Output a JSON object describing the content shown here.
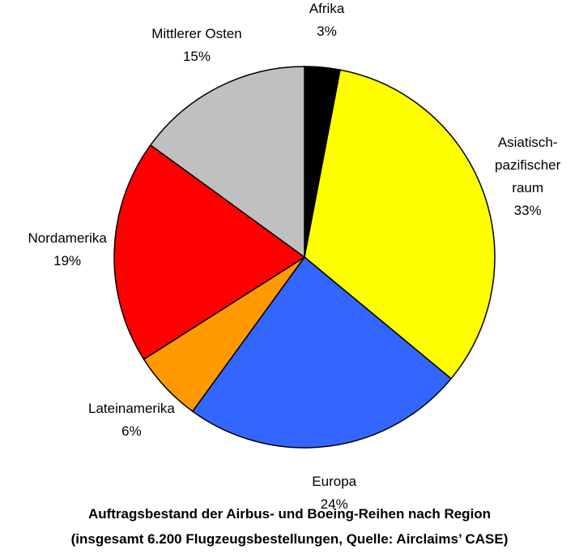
{
  "chart_data": {
    "type": "pie",
    "title": "Auftragsbestand der Airbus- und Boeing-Reihen nach Region",
    "subtitle": "(insgesamt 6.200 Flugzeugsbestellungen, Quelle: Airclaims’ CASE)",
    "categories": [
      "Afrika",
      "Asiatisch-\npazifischer\nraum",
      "Europa",
      "Lateinamerika",
      "Nordamerika",
      "Mittlerer Osten"
    ],
    "values": [
      3,
      33,
      24,
      6,
      19,
      15
    ],
    "value_labels": [
      "3%",
      "33%",
      "24%",
      "6%",
      "19%",
      "15%"
    ],
    "colors": [
      "#000000",
      "#ffff00",
      "#3366ff",
      "#ff9900",
      "#ff0000",
      "#c0c0c0"
    ]
  }
}
